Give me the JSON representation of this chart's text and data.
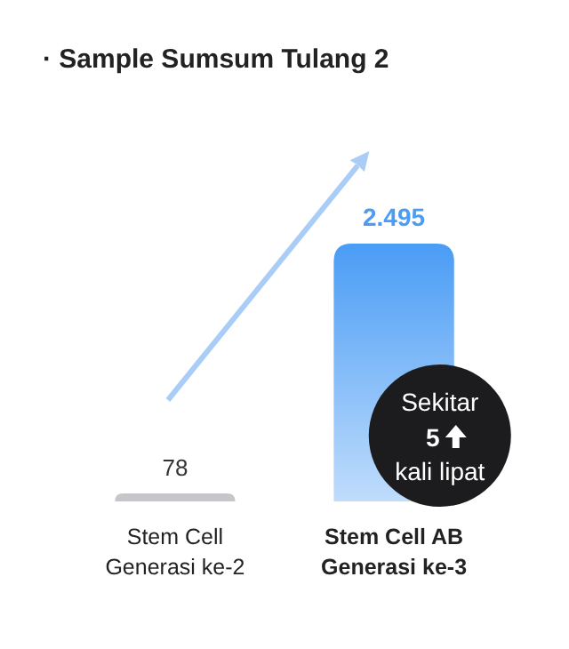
{
  "chart_data": {
    "type": "bar",
    "title": "· Sample Sumsum Tulang 2",
    "categories": [
      "Stem Cell\nGenerasi ke-2",
      "Stem Cell AB\nGenerasi ke-3"
    ],
    "values": [
      78,
      2495
    ],
    "value_labels": [
      "78",
      "2.495"
    ],
    "colors": [
      "#c4c6ca",
      "#4a9cf5"
    ],
    "annotations": [
      "Sekitar",
      "5",
      "kali lipat"
    ]
  }
}
